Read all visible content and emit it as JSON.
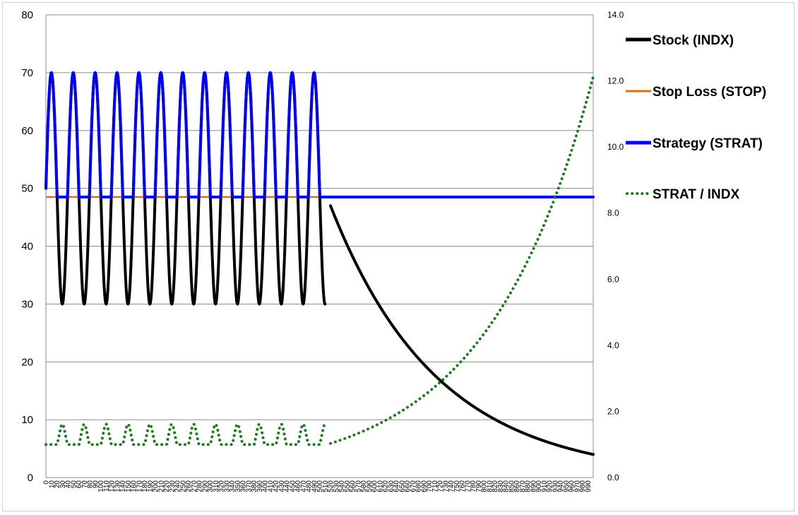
{
  "chart_data": {
    "type": "line",
    "title": "",
    "xlabel": "",
    "ylabel": "",
    "y2label": "",
    "xlim": [
      0,
      1000
    ],
    "ylim": [
      0,
      80
    ],
    "y2lim": [
      0,
      14
    ],
    "grid": true,
    "legend_position": "right",
    "y_ticks": [
      "0",
      "10",
      "20",
      "30",
      "40",
      "50",
      "60",
      "70",
      "80"
    ],
    "y2_ticks": [
      "0.0",
      "2.0",
      "4.0",
      "6.0",
      "8.0",
      "10.0",
      "12.0",
      "14.0"
    ],
    "x_tick_step": 10,
    "series": [
      {
        "name": "Stock (INDX)",
        "axis": "left",
        "color": "#000000",
        "style": "solid",
        "segments": [
          {
            "kind": "oscillation",
            "x_start": 0,
            "x_end": 510,
            "center": 50,
            "amplitude": 20,
            "period": 40
          },
          {
            "kind": "exponential",
            "x_start": 520,
            "x_end": 1000,
            "y_start": 47,
            "y_end": 4
          }
        ]
      },
      {
        "name": "Stop Loss (STOP)",
        "axis": "left",
        "color": "#e36c0a",
        "style": "solid",
        "x": [
          0,
          510
        ],
        "y": [
          48.5,
          48.5
        ]
      },
      {
        "name": "Strategy (STRAT)",
        "axis": "left",
        "color": "#0000ff",
        "style": "solid",
        "segments": [
          {
            "kind": "oscillation-floored",
            "x_start": 0,
            "x_end": 510,
            "center": 50,
            "amplitude": 20,
            "period": 40,
            "floor": 48.5
          },
          {
            "kind": "flat",
            "x_start": 510,
            "x_end": 1000,
            "y": 48.5
          }
        ]
      },
      {
        "name": "STRAT / INDX",
        "axis": "right",
        "color": "#1e7b1e",
        "style": "dotted",
        "derived_from": [
          "Strategy (STRAT)",
          "Stock (INDX)"
        ]
      }
    ]
  }
}
